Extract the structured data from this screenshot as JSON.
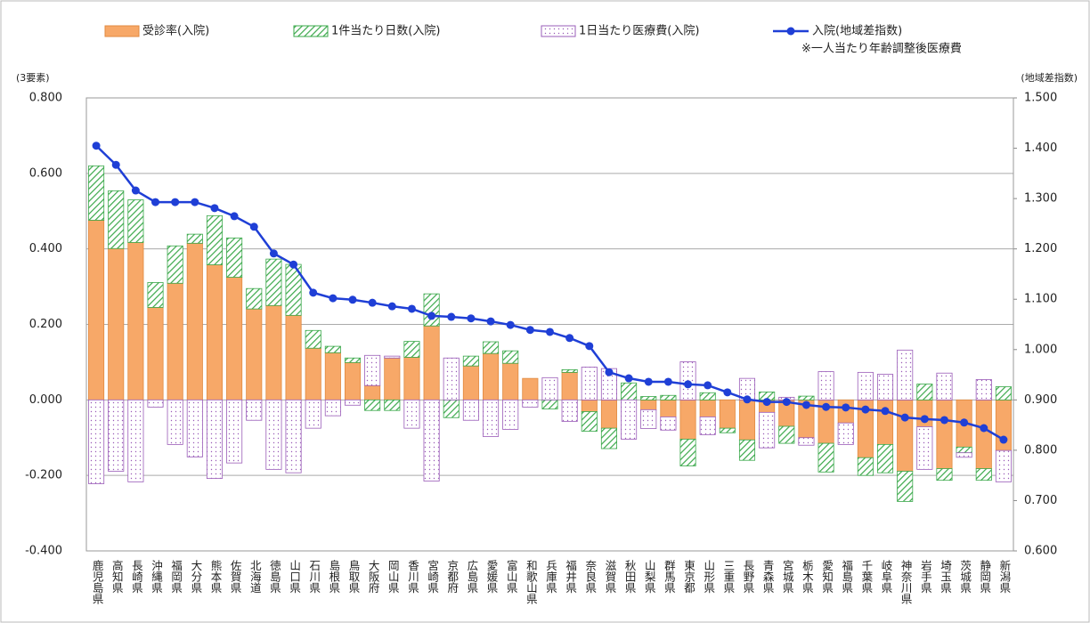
{
  "chart_data": {
    "type": "bar-line",
    "left_axis_label": "(3要素)",
    "right_axis_label": "(地域差指数)",
    "note": "※一人当たり年齢調整後医療費",
    "categories": [
      "鹿児島県",
      "高知県",
      "長崎県",
      "沖縄県",
      "福岡県",
      "大分県",
      "熊本県",
      "佐賀県",
      "北海道",
      "徳島県",
      "山口県",
      "石川県",
      "島根県",
      "鳥取県",
      "大阪府",
      "岡山県",
      "香川県",
      "宮崎県",
      "京都府",
      "広島県",
      "愛媛県",
      "富山県",
      "和歌山県",
      "兵庫県",
      "福井県",
      "奈良県",
      "滋賀県",
      "秋田県",
      "山梨県",
      "群馬県",
      "東京都",
      "山形県",
      "三重県",
      "長野県",
      "青森県",
      "宮城県",
      "栃木県",
      "愛知県",
      "福島県",
      "千葉県",
      "岐阜県",
      "神奈川県",
      "岩手県",
      "埼玉県",
      "茨城県",
      "静岡県",
      "新潟県"
    ],
    "series": [
      {
        "name": "受診率(入院)",
        "color": "#f7a868",
        "values": [
          0.476,
          0.401,
          0.417,
          0.245,
          0.309,
          0.415,
          0.358,
          0.325,
          0.241,
          0.25,
          0.224,
          0.137,
          0.125,
          0.099,
          0.038,
          0.111,
          0.113,
          0.196,
          0,
          0.09,
          0.123,
          0.097,
          0.057,
          0,
          0.073,
          -0.031,
          -0.075,
          0,
          -0.026,
          -0.045,
          -0.104,
          -0.045,
          -0.075,
          -0.106,
          -0.033,
          -0.07,
          -0.1,
          -0.115,
          -0.061,
          -0.153,
          -0.118,
          -0.189,
          -0.071,
          -0.182,
          -0.125,
          -0.182,
          -0.134
        ]
      },
      {
        "name": "1件当たり日数(入院)",
        "color": "#3aa84a",
        "values": [
          0.144,
          0.153,
          0.113,
          0.066,
          0.099,
          0.024,
          0.13,
          0.104,
          0.054,
          0.123,
          0.135,
          0.047,
          0.017,
          0.012,
          -0.028,
          -0.028,
          0.042,
          0.085,
          -0.047,
          0.026,
          0.031,
          0.033,
          0,
          -0.024,
          0.007,
          -0.052,
          -0.054,
          0.045,
          0.009,
          0.012,
          -0.071,
          0.019,
          -0.012,
          -0.054,
          0.021,
          -0.045,
          0.01,
          -0.076,
          0,
          -0.047,
          -0.075,
          -0.08,
          0.042,
          -0.031,
          -0.015,
          -0.031,
          0.035
        ]
      },
      {
        "name": "1日当たり医療費(入院)",
        "color": "#9a5cb8",
        "values": [
          -0.222,
          -0.189,
          -0.217,
          -0.019,
          -0.118,
          -0.151,
          -0.208,
          -0.167,
          -0.054,
          -0.184,
          -0.193,
          -0.075,
          -0.042,
          -0.014,
          0.08,
          0.005,
          -0.075,
          -0.215,
          0.111,
          -0.054,
          -0.097,
          -0.078,
          -0.019,
          0.059,
          -0.057,
          0.087,
          0.083,
          -0.104,
          -0.05,
          -0.035,
          0.101,
          -0.047,
          0,
          0.057,
          -0.094,
          0.007,
          -0.02,
          0.075,
          -0.057,
          0.073,
          0.068,
          0.132,
          -0.113,
          0.071,
          -0.012,
          0.054,
          -0.083
        ]
      },
      {
        "name": "入院(地域差指数)",
        "color": "#1f3fd6",
        "axis": "y2",
        "values": [
          1.405,
          1.367,
          1.316,
          1.293,
          1.293,
          1.293,
          1.281,
          1.265,
          1.244,
          1.191,
          1.169,
          1.113,
          1.102,
          1.099,
          1.093,
          1.086,
          1.081,
          1.067,
          1.065,
          1.062,
          1.056,
          1.049,
          1.039,
          1.035,
          1.023,
          1.007,
          0.955,
          0.943,
          0.936,
          0.936,
          0.931,
          0.929,
          0.915,
          0.901,
          0.896,
          0.896,
          0.89,
          0.886,
          0.885,
          0.881,
          0.878,
          0.865,
          0.862,
          0.86,
          0.855,
          0.844,
          0.821
        ]
      }
    ],
    "ylim": [
      -0.4,
      0.8
    ],
    "yticks": [
      {
        "value": -0.4,
        "label": "-0.400"
      },
      {
        "value": -0.2,
        "label": "-0.200"
      },
      {
        "value": 0,
        "label": "0.000"
      },
      {
        "value": 0.2,
        "label": "0.200"
      },
      {
        "value": 0.4,
        "label": "0.400"
      },
      {
        "value": 0.6,
        "label": "0.600"
      },
      {
        "value": 0.8,
        "label": "0.800"
      }
    ],
    "y2lim": [
      0.6,
      1.5
    ],
    "y2ticks": [
      {
        "value": 0.6,
        "label": "0.600"
      },
      {
        "value": 0.7,
        "label": "0.700"
      },
      {
        "value": 0.8,
        "label": "0.800"
      },
      {
        "value": 0.9,
        "label": "0.900"
      },
      {
        "value": 1.0,
        "label": "1.000"
      },
      {
        "value": 1.1,
        "label": "1.100"
      },
      {
        "value": 1.2,
        "label": "1.200"
      },
      {
        "value": 1.3,
        "label": "1.300"
      },
      {
        "value": 1.4,
        "label": "1.400"
      },
      {
        "value": 1.5,
        "label": "1.500"
      }
    ],
    "grid": true
  }
}
